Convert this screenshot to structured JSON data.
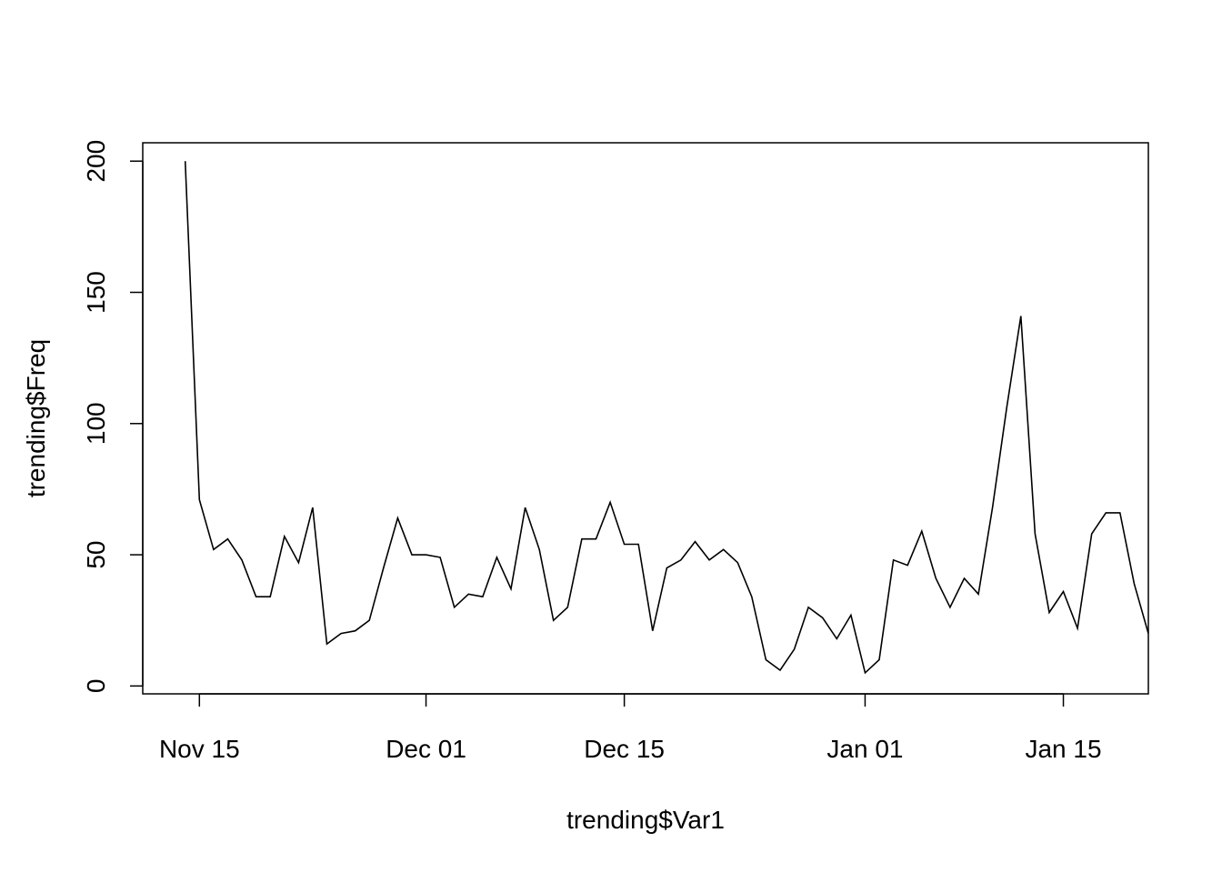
{
  "chart_data": {
    "type": "line",
    "title": "",
    "xlabel": "trending$Var1",
    "ylabel": "trending$Freq",
    "x_axis_type": "date",
    "x_ticks": [
      {
        "date": "2017-11-15",
        "label": "Nov 15"
      },
      {
        "date": "2017-12-01",
        "label": "Dec 01"
      },
      {
        "date": "2017-12-15",
        "label": "Dec 15"
      },
      {
        "date": "2018-01-01",
        "label": "Jan 01"
      },
      {
        "date": "2018-01-15",
        "label": "Jan 15"
      }
    ],
    "y_ticks": [
      0,
      50,
      100,
      150,
      200
    ],
    "xlim": [
      "2017-11-11",
      "2018-01-21"
    ],
    "ylim": [
      -3,
      207
    ],
    "grid": false,
    "legend": "none",
    "line_color": "#000000",
    "series": [
      {
        "x": [
          "2017-11-14",
          "2017-11-15",
          "2017-11-16",
          "2017-11-17",
          "2017-11-18",
          "2017-11-19",
          "2017-11-20",
          "2017-11-21",
          "2017-11-22",
          "2017-11-23",
          "2017-11-24",
          "2017-11-25",
          "2017-11-26",
          "2017-11-27",
          "2017-11-28",
          "2017-11-29",
          "2017-11-30",
          "2017-12-01",
          "2017-12-02",
          "2017-12-03",
          "2017-12-04",
          "2017-12-05",
          "2017-12-06",
          "2017-12-07",
          "2017-12-08",
          "2017-12-09",
          "2017-12-10",
          "2017-12-11",
          "2017-12-12",
          "2017-12-13",
          "2017-12-14",
          "2017-12-15",
          "2017-12-16",
          "2017-12-17",
          "2017-12-18",
          "2017-12-19",
          "2017-12-20",
          "2017-12-21",
          "2017-12-22",
          "2017-12-23",
          "2017-12-24",
          "2017-12-25",
          "2017-12-26",
          "2017-12-27",
          "2017-12-28",
          "2017-12-29",
          "2017-12-30",
          "2017-12-31",
          "2018-01-01",
          "2018-01-02",
          "2018-01-03",
          "2018-01-04",
          "2018-01-05",
          "2018-01-06",
          "2018-01-07",
          "2018-01-08",
          "2018-01-09",
          "2018-01-10",
          "2018-01-11",
          "2018-01-12",
          "2018-01-13",
          "2018-01-14",
          "2018-01-15",
          "2018-01-16",
          "2018-01-17",
          "2018-01-18",
          "2018-01-19",
          "2018-01-20",
          "2018-01-21"
        ],
        "values": [
          200,
          71,
          52,
          56,
          48,
          34,
          34,
          57,
          47,
          68,
          16,
          20,
          21,
          25,
          45,
          64,
          50,
          50,
          49,
          30,
          35,
          34,
          49,
          37,
          68,
          52,
          25,
          30,
          56,
          56,
          70,
          54,
          54,
          21,
          45,
          48,
          55,
          48,
          52,
          47,
          34,
          10,
          6,
          14,
          30,
          26,
          18,
          27,
          5,
          10,
          48,
          46,
          59,
          41,
          30,
          41,
          35,
          68,
          106,
          141,
          58,
          28,
          36,
          22,
          58,
          66,
          66,
          39,
          20
        ]
      }
    ]
  }
}
